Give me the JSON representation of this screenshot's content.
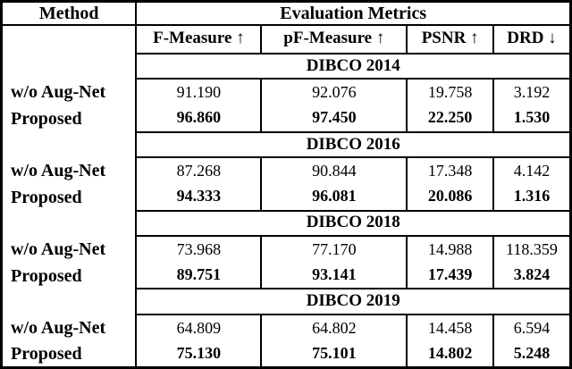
{
  "table": {
    "header": {
      "method_label": "Method",
      "metrics_label": "Evaluation Metrics"
    },
    "columns": [
      {
        "label": "F-Measure ↑"
      },
      {
        "label": "pF-Measure ↑"
      },
      {
        "label": "PSNR ↑"
      },
      {
        "label": "DRD ↓"
      }
    ],
    "sections": [
      {
        "dataset": "DIBCO 2014",
        "rows": [
          {
            "method": "w/o Aug-Net",
            "values": [
              "91.190",
              "92.076",
              "19.758",
              "3.192"
            ]
          },
          {
            "method": "Proposed",
            "values": [
              "96.860",
              "97.450",
              "22.250",
              "1.530"
            ]
          }
        ]
      },
      {
        "dataset": "DIBCO 2016",
        "rows": [
          {
            "method": "w/o Aug-Net",
            "values": [
              "87.268",
              "90.844",
              "17.348",
              "4.142"
            ]
          },
          {
            "method": "Proposed",
            "values": [
              "94.333",
              "96.081",
              "20.086",
              "1.316"
            ]
          }
        ]
      },
      {
        "dataset": "DIBCO 2018",
        "rows": [
          {
            "method": "w/o Aug-Net",
            "values": [
              "73.968",
              "77.170",
              "14.988",
              "118.359"
            ]
          },
          {
            "method": "Proposed",
            "values": [
              "89.751",
              "93.141",
              "17.439",
              "3.824"
            ]
          }
        ]
      },
      {
        "dataset": "DIBCO 2019",
        "rows": [
          {
            "method": "w/o Aug-Net",
            "values": [
              "64.809",
              "64.802",
              "14.458",
              "6.594"
            ]
          },
          {
            "method": "Proposed",
            "values": [
              "75.130",
              "75.101",
              "14.802",
              "5.248"
            ]
          }
        ]
      }
    ]
  },
  "colors": {
    "text": "#000000",
    "border": "#000000",
    "background": "#ffffff"
  }
}
